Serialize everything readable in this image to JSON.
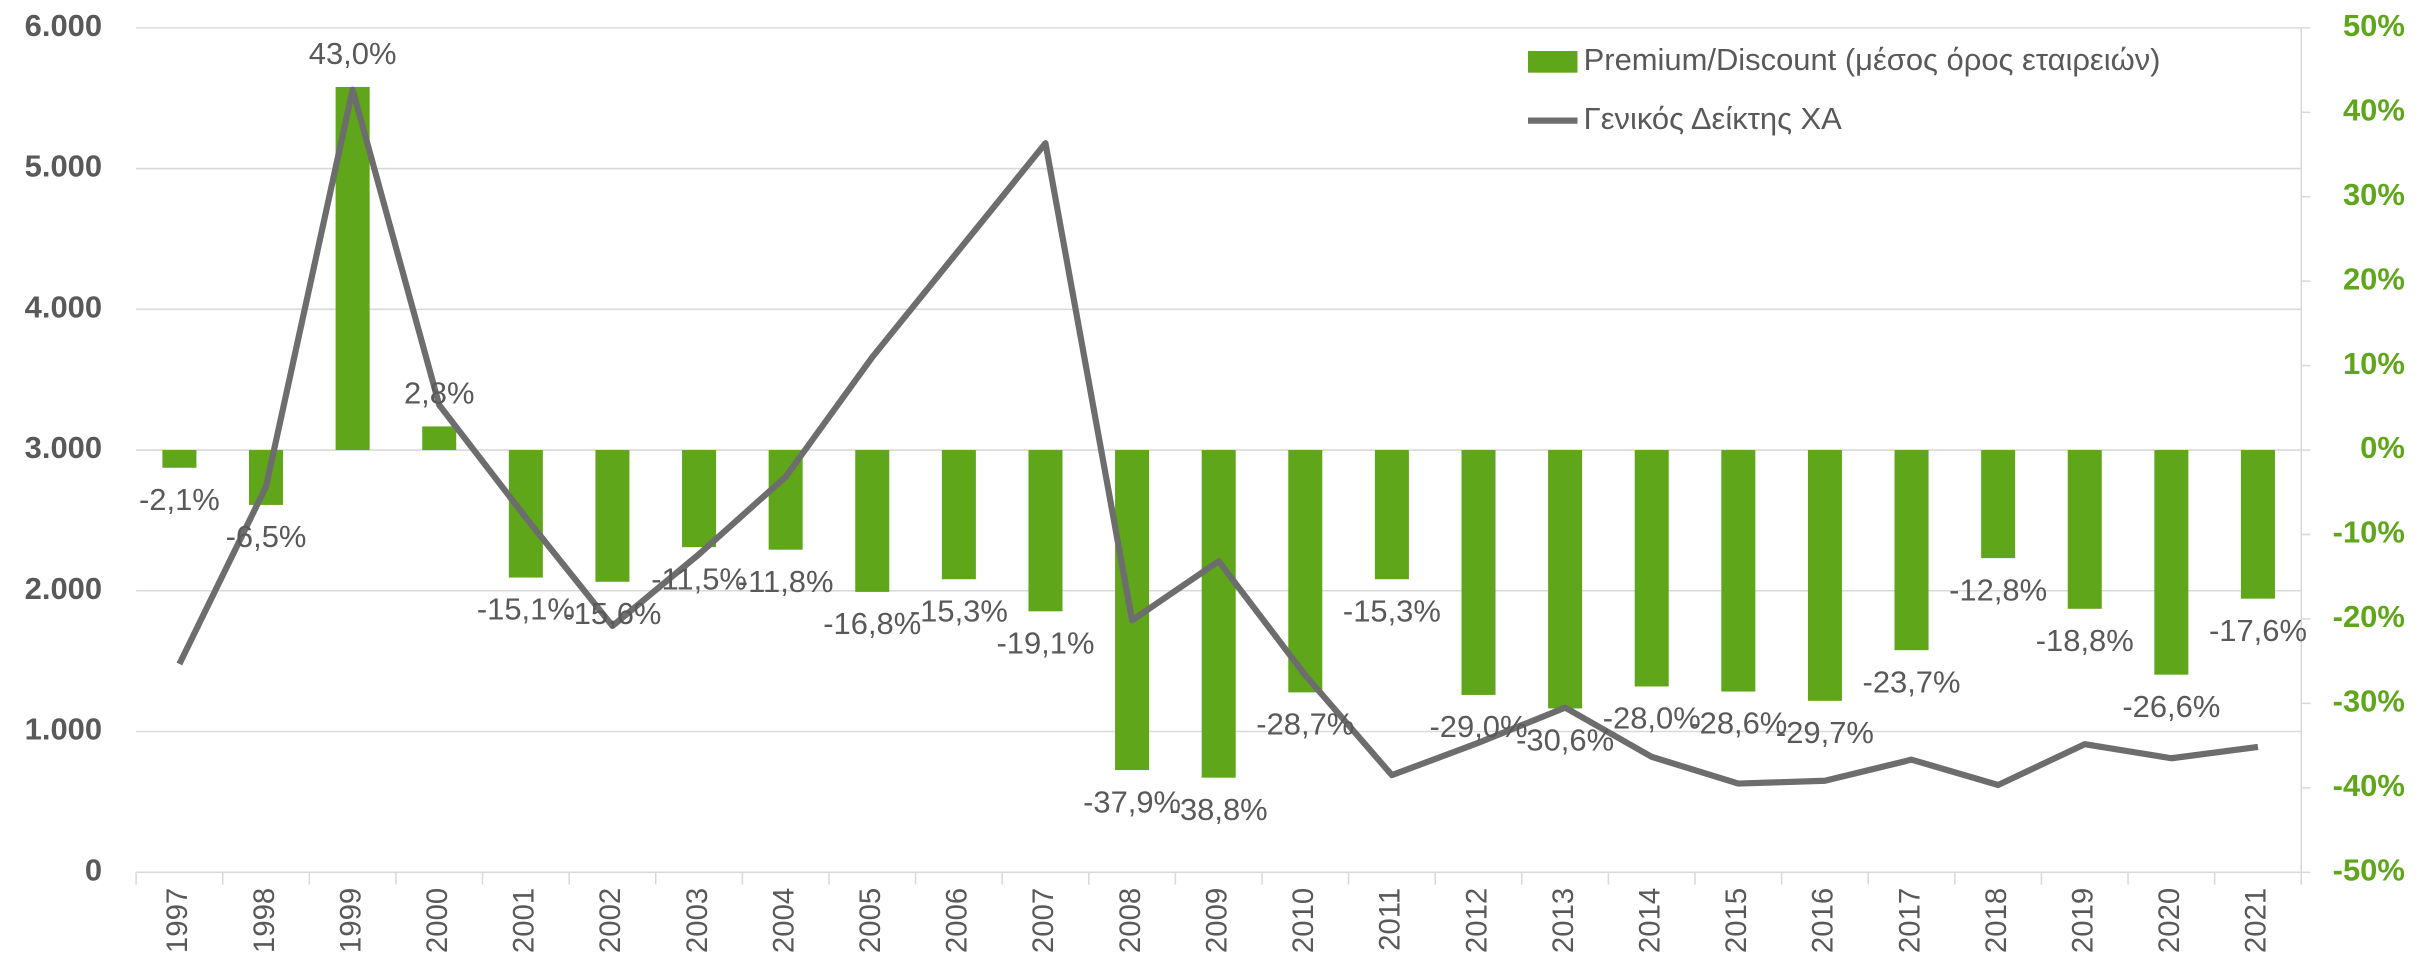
{
  "chart_data": {
    "type": "bar",
    "categories": [
      "1997",
      "1998",
      "1999",
      "2000",
      "2001",
      "2002",
      "2003",
      "2004",
      "2005",
      "2006",
      "2007",
      "2008",
      "2009",
      "2010",
      "2011",
      "2012",
      "2013",
      "2014",
      "2015",
      "2016",
      "2017",
      "2018",
      "2019",
      "2020",
      "2021"
    ],
    "series": [
      {
        "name": "Premium/Discount (μέσος όρος εταιρειών)",
        "type": "bar",
        "axis": "y2",
        "color": "#5fa61a",
        "values": [
          -2.1,
          -6.5,
          43.0,
          2.8,
          -15.1,
          -15.6,
          -11.5,
          -11.8,
          -16.8,
          -15.3,
          -19.1,
          -37.9,
          -38.8,
          -28.7,
          -15.3,
          -29.0,
          -30.6,
          -28.0,
          -28.6,
          -29.7,
          -23.7,
          -12.8,
          -18.8,
          -26.6,
          -17.6
        ],
        "value_labels": [
          "-2,1%",
          "-6,5%",
          "43,0%",
          "2,8%",
          "-15,1%",
          "-15,6%",
          "-11,5%",
          "-11,8%",
          "-16,8%",
          "-15,3%",
          "-19,1%",
          "-37,9%",
          "-38,8%",
          "-28,7%",
          "-15,3%",
          "-29,0%",
          "-30,6%",
          "-28,0%",
          "-28,6%",
          "-29,7%",
          "-23,7%",
          "-12,8%",
          "-18,8%",
          "-26,6%",
          "-17,6%"
        ]
      },
      {
        "name": "Γενικός Δείκτης ΧΑ",
        "type": "line",
        "color": "#6d6d6d",
        "values": [
          1480,
          2740,
          5560,
          3320,
          2520,
          1750,
          2260,
          2810,
          3660,
          4420,
          5180,
          1790,
          2210,
          1400,
          690,
          920,
          1170,
          820,
          630,
          650,
          800,
          620,
          910,
          810,
          890
        ]
      }
    ],
    "ylim": [
      0,
      6000
    ],
    "yticks": [
      0,
      {
        "value": 1000,
        "label": "1.000"
      },
      {
        "value": 2000,
        "label": "2.000"
      },
      {
        "value": 3000,
        "label": "3.000"
      },
      {
        "value": 4000,
        "label": "4.000"
      },
      {
        "value": 5000,
        "label": "5.000"
      },
      {
        "value": 6000,
        "label": "6.000"
      }
    ],
    "y2lim": [
      -50,
      50
    ],
    "y2ticks": [
      {
        "value": -50,
        "label": "-50%"
      },
      {
        "value": -40,
        "label": "-40%"
      },
      {
        "value": -30,
        "label": "-30%"
      },
      {
        "value": -20,
        "label": "-20%"
      },
      {
        "value": -10,
        "label": "-10%"
      },
      {
        "value": 0,
        "label": "0%"
      },
      {
        "value": 10,
        "label": "10%"
      },
      {
        "value": 20,
        "label": "20%"
      },
      {
        "value": 30,
        "label": "30%"
      },
      {
        "value": 40,
        "label": "40%"
      },
      {
        "value": 50,
        "label": "50%"
      }
    ],
    "grid": true,
    "legend": "top-right"
  }
}
